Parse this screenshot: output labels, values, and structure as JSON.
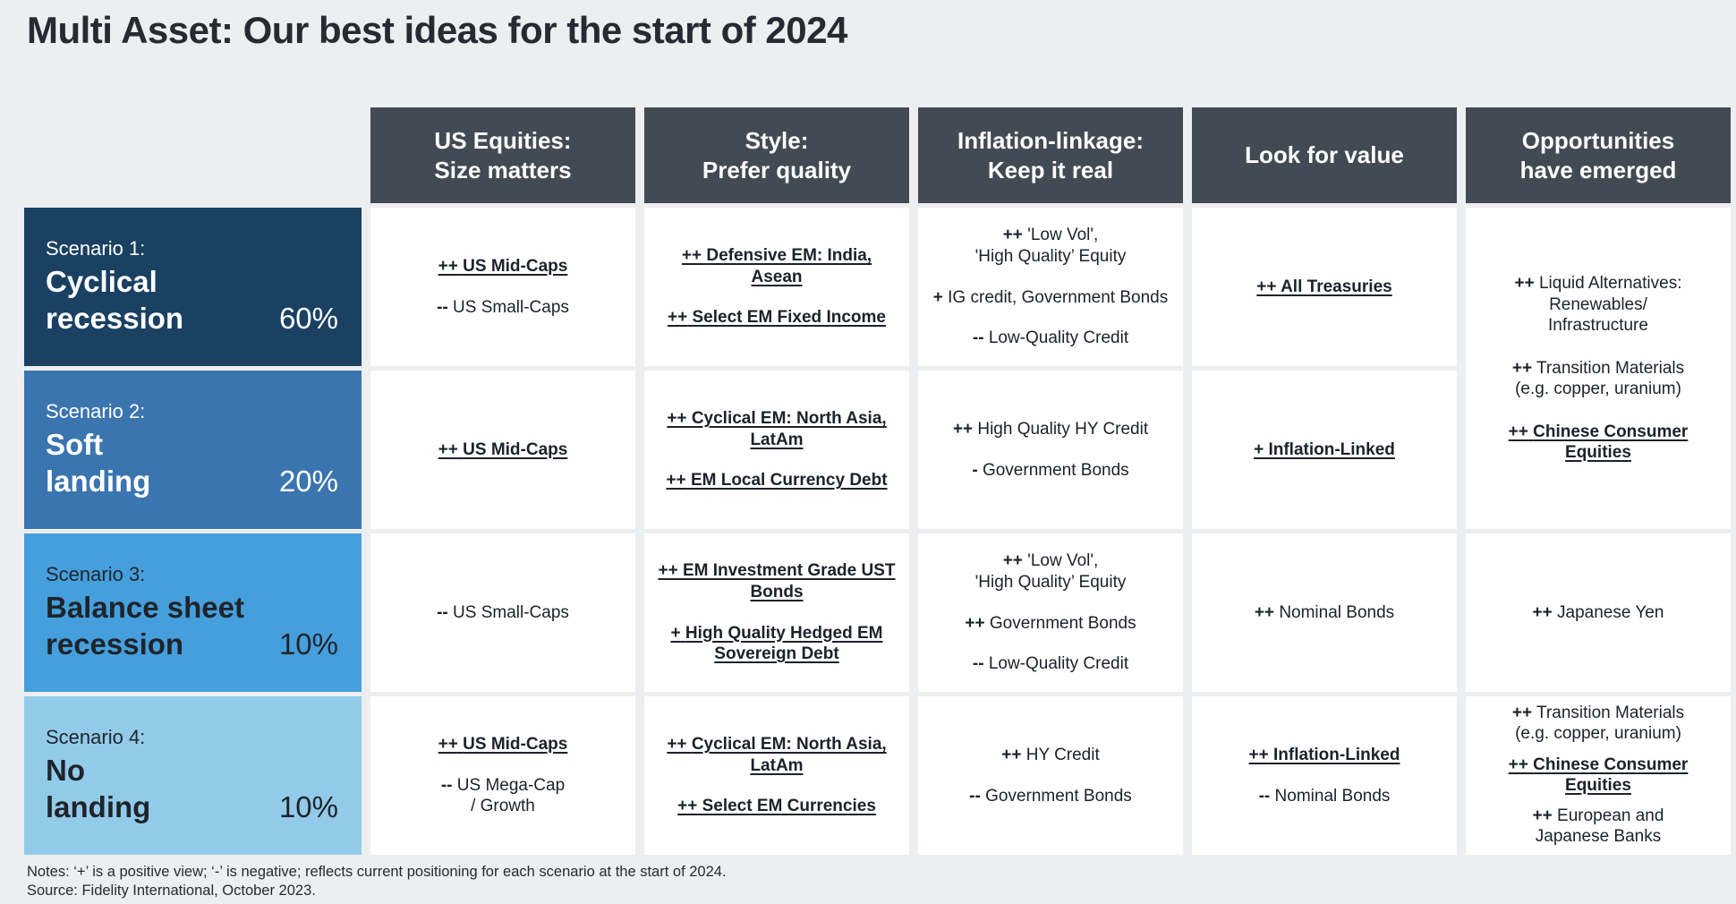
{
  "title": "Multi Asset: Our best ideas for the start of 2024",
  "colors": {
    "page_bg": "#EDEEF0",
    "header_bg": "#424A54",
    "cell_bg": "#FFFFFF",
    "scenario1_bg": "#1A4062",
    "scenario2_bg": "#3B75AF",
    "scenario3_bg": "#459FDC",
    "scenario4_bg": "#92CBE9",
    "dark_text": "#21252D",
    "light_text": "#FFFFFF"
  },
  "columns": [
    "US Equities:\nSize matters",
    "Style:\nPrefer quality",
    "Inflation-linkage:\nKeep it real",
    "Look for value",
    "Opportunities\nhave emerged"
  ],
  "rows": [
    {
      "scenario": {
        "label": "Scenario 1:",
        "name": "Cyclical\nrecession",
        "probability": "60%"
      },
      "cells": [
        {
          "items": [
            {
              "marker": "++",
              "text": "US Mid-Caps",
              "style": "strong"
            },
            {
              "marker": "--",
              "text": "US Small-Caps",
              "style": "normal"
            }
          ]
        },
        {
          "items": [
            {
              "marker": "++",
              "text": "Defensive EM: India,\nAsean",
              "style": "strong"
            },
            {
              "marker": "++",
              "text": "Select EM Fixed Income",
              "style": "strong"
            }
          ]
        },
        {
          "items": [
            {
              "marker": "++",
              "text": "'Low Vol',\n'High Quality’ Equity",
              "style": "normal"
            },
            {
              "marker": "+",
              "text": "IG credit, Government Bonds",
              "style": "normal"
            },
            {
              "marker": "--",
              "text": "Low-Quality Credit",
              "style": "normal"
            }
          ]
        },
        {
          "items": [
            {
              "marker": "++",
              "text": "All Treasuries",
              "style": "strong"
            }
          ]
        },
        {
          "merged_rows": 2,
          "items": [
            {
              "marker": "++",
              "text": "Liquid Alternatives:\nRenewables/\nInfrastructure",
              "style": "normal"
            },
            {
              "marker": "++",
              "text": "Transition Materials\n(e.g. copper, uranium)",
              "style": "normal"
            },
            {
              "marker": "++",
              "text": "Chinese Consumer\nEquities",
              "style": "strong"
            }
          ]
        }
      ]
    },
    {
      "scenario": {
        "label": "Scenario 2:",
        "name": "Soft\nlanding",
        "probability": "20%"
      },
      "cells": [
        {
          "items": [
            {
              "marker": "++",
              "text": "US Mid-Caps",
              "style": "strong"
            }
          ]
        },
        {
          "items": [
            {
              "marker": "++",
              "text": "Cyclical EM: North Asia,\nLatAm",
              "style": "strong"
            },
            {
              "marker": "++",
              "text": "EM Local Currency Debt",
              "style": "strong"
            }
          ]
        },
        {
          "items": [
            {
              "marker": "++",
              "text": "High Quality HY Credit",
              "style": "normal"
            },
            {
              "marker": "-",
              "text": "Government Bonds",
              "style": "normal"
            }
          ]
        },
        {
          "items": [
            {
              "marker": "+",
              "text": "Inflation-Linked",
              "style": "strong"
            }
          ]
        }
      ]
    },
    {
      "scenario": {
        "label": "Scenario 3:",
        "name": "Balance sheet\nrecession",
        "probability": "10%"
      },
      "cells": [
        {
          "items": [
            {
              "marker": "--",
              "text": "US Small-Caps",
              "style": "normal"
            }
          ]
        },
        {
          "items": [
            {
              "marker": "++",
              "text": "EM Investment Grade UST\nBonds",
              "style": "strong"
            },
            {
              "marker": "+",
              "text": "High Quality Hedged EM\nSovereign Debt",
              "style": "strong"
            }
          ]
        },
        {
          "items": [
            {
              "marker": "++",
              "text": "'Low Vol',\n'High Quality’ Equity",
              "style": "normal"
            },
            {
              "marker": "++",
              "text": "Government Bonds",
              "style": "normal"
            },
            {
              "marker": "--",
              "text": "Low-Quality Credit",
              "style": "normal"
            }
          ]
        },
        {
          "items": [
            {
              "marker": "++",
              "text": "Nominal Bonds",
              "style": "normal"
            }
          ]
        },
        {
          "items": [
            {
              "marker": "++",
              "text": "Japanese Yen",
              "style": "normal"
            }
          ]
        }
      ]
    },
    {
      "scenario": {
        "label": "Scenario 4:",
        "name": "No\nlanding",
        "probability": "10%"
      },
      "cells": [
        {
          "items": [
            {
              "marker": "++",
              "text": "US Mid-Caps",
              "style": "strong"
            },
            {
              "marker": "--",
              "text": "US Mega-Cap\n/ Growth",
              "style": "normal"
            }
          ]
        },
        {
          "items": [
            {
              "marker": "++",
              "text": "Cyclical EM: North Asia,\nLatAm",
              "style": "strong"
            },
            {
              "marker": "++",
              "text": "Select EM Currencies",
              "style": "strong"
            }
          ]
        },
        {
          "items": [
            {
              "marker": "++",
              "text": "HY Credit",
              "style": "normal"
            },
            {
              "marker": "--",
              "text": "Government Bonds",
              "style": "normal"
            }
          ]
        },
        {
          "items": [
            {
              "marker": "++",
              "text": "Inflation-Linked",
              "style": "strong"
            },
            {
              "marker": "--",
              "text": "Nominal Bonds",
              "style": "normal"
            }
          ]
        },
        {
          "items": [
            {
              "marker": "++",
              "text": "Transition Materials\n(e.g. copper, uranium)",
              "style": "normal"
            },
            {
              "marker": "++",
              "text": "Chinese Consumer\nEquities",
              "style": "strong"
            },
            {
              "marker": "++",
              "text": "European and\nJapanese Banks",
              "style": "normal"
            }
          ]
        }
      ]
    }
  ],
  "notes": {
    "line1": "Notes: ‘+’ is a positive view; ‘-’ is negative; reflects current positioning for each scenario at the start of 2024.",
    "line2": "Source: Fidelity International, October 2023."
  }
}
